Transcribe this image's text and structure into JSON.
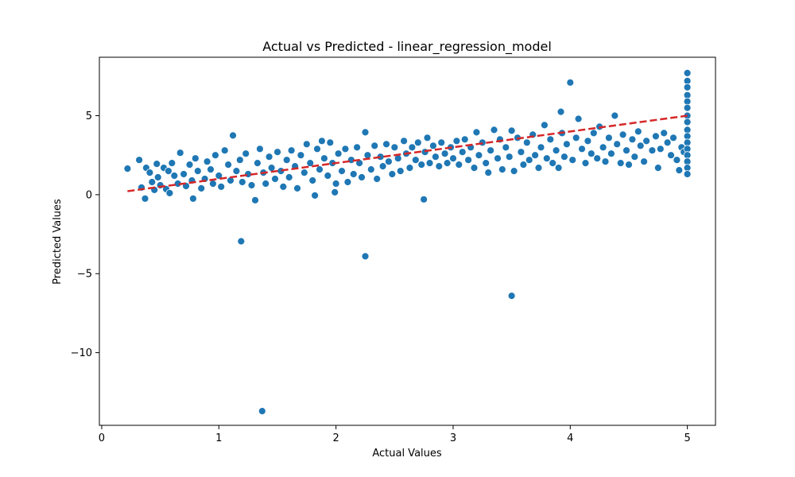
{
  "chart_data": {
    "type": "scatter",
    "title": "Actual vs Predicted - linear_regression_model",
    "xlabel": "Actual Values",
    "ylabel": "Predicted Values",
    "xlim": [
      -0.02,
      5.24
    ],
    "ylim": [
      -14.6,
      8.7
    ],
    "xticks": [
      0,
      1,
      2,
      3,
      4,
      5
    ],
    "yticks": [
      -10,
      -5,
      0,
      5
    ],
    "ytick_labels": [
      "−10",
      "−5",
      "0",
      "5"
    ],
    "grid": false,
    "legend": "none",
    "colors": {
      "points": "#1f77b4",
      "point_edge": "#ffffff",
      "reference_line": "#d62728"
    },
    "reference_line": {
      "style": "dashed",
      "x": [
        0.22,
        5.0
      ],
      "y": [
        0.22,
        5.0
      ]
    },
    "series": [
      {
        "points": [
          [
            0.22,
            1.65
          ],
          [
            0.32,
            2.2
          ],
          [
            0.34,
            0.45
          ],
          [
            0.37,
            -0.25
          ],
          [
            0.38,
            1.7
          ],
          [
            0.41,
            1.4
          ],
          [
            0.43,
            0.8
          ],
          [
            0.45,
            0.3
          ],
          [
            0.47,
            1.95
          ],
          [
            0.48,
            1.1
          ],
          [
            0.5,
            0.6
          ],
          [
            0.53,
            1.7
          ],
          [
            0.55,
            0.35
          ],
          [
            0.57,
            1.5
          ],
          [
            0.58,
            0.1
          ],
          [
            0.6,
            2.0
          ],
          [
            0.62,
            1.2
          ],
          [
            0.65,
            0.7
          ],
          [
            0.67,
            2.65
          ],
          [
            0.7,
            1.3
          ],
          [
            0.72,
            0.55
          ],
          [
            0.75,
            1.9
          ],
          [
            0.77,
            0.9
          ],
          [
            0.78,
            -0.25
          ],
          [
            0.8,
            2.3
          ],
          [
            0.82,
            1.5
          ],
          [
            0.85,
            0.4
          ],
          [
            0.88,
            1.0
          ],
          [
            0.9,
            2.1
          ],
          [
            0.93,
            1.6
          ],
          [
            0.95,
            0.7
          ],
          [
            0.97,
            2.5
          ],
          [
            1.0,
            1.2
          ],
          [
            1.02,
            0.5
          ],
          [
            1.05,
            2.8
          ],
          [
            1.08,
            1.9
          ],
          [
            1.1,
            0.9
          ],
          [
            1.12,
            3.75
          ],
          [
            1.15,
            1.5
          ],
          [
            1.18,
            2.2
          ],
          [
            1.19,
            -2.95
          ],
          [
            1.2,
            0.8
          ],
          [
            1.23,
            2.6
          ],
          [
            1.25,
            1.3
          ],
          [
            1.28,
            0.6
          ],
          [
            1.31,
            -0.35
          ],
          [
            1.33,
            2.0
          ],
          [
            1.35,
            2.9
          ],
          [
            1.37,
            -13.7
          ],
          [
            1.38,
            1.4
          ],
          [
            1.4,
            0.7
          ],
          [
            1.43,
            2.4
          ],
          [
            1.45,
            1.7
          ],
          [
            1.48,
            1.0
          ],
          [
            1.5,
            2.7
          ],
          [
            1.53,
            1.5
          ],
          [
            1.55,
            0.5
          ],
          [
            1.58,
            2.2
          ],
          [
            1.6,
            1.1
          ],
          [
            1.62,
            2.8
          ],
          [
            1.65,
            1.8
          ],
          [
            1.67,
            0.4
          ],
          [
            1.7,
            2.5
          ],
          [
            1.73,
            1.4
          ],
          [
            1.75,
            3.2
          ],
          [
            1.78,
            2.0
          ],
          [
            1.8,
            0.9
          ],
          [
            1.82,
            -0.05
          ],
          [
            1.84,
            2.9
          ],
          [
            1.86,
            1.6
          ],
          [
            1.88,
            3.4
          ],
          [
            1.9,
            2.3
          ],
          [
            1.93,
            1.2
          ],
          [
            1.95,
            3.3
          ],
          [
            1.97,
            2.0
          ],
          [
            1.99,
            0.15
          ],
          [
            2.0,
            0.7
          ],
          [
            2.02,
            2.6
          ],
          [
            2.05,
            1.5
          ],
          [
            2.08,
            2.9
          ],
          [
            2.1,
            0.8
          ],
          [
            2.13,
            2.2
          ],
          [
            2.15,
            1.3
          ],
          [
            2.18,
            3.0
          ],
          [
            2.2,
            2.0
          ],
          [
            2.22,
            1.1
          ],
          [
            2.25,
            3.95
          ],
          [
            2.25,
            -3.9
          ],
          [
            2.27,
            2.5
          ],
          [
            2.3,
            1.6
          ],
          [
            2.33,
            3.1
          ],
          [
            2.35,
            1.0
          ],
          [
            2.38,
            2.4
          ],
          [
            2.4,
            1.8
          ],
          [
            2.43,
            3.2
          ],
          [
            2.45,
            2.1
          ],
          [
            2.48,
            1.3
          ],
          [
            2.5,
            3.0
          ],
          [
            2.53,
            2.3
          ],
          [
            2.55,
            1.5
          ],
          [
            2.58,
            3.4
          ],
          [
            2.6,
            2.6
          ],
          [
            2.63,
            1.7
          ],
          [
            2.65,
            3.0
          ],
          [
            2.68,
            2.2
          ],
          [
            2.7,
            3.3
          ],
          [
            2.73,
            1.9
          ],
          [
            2.75,
            -0.3
          ],
          [
            2.76,
            2.7
          ],
          [
            2.78,
            3.6
          ],
          [
            2.8,
            2.0
          ],
          [
            2.83,
            3.1
          ],
          [
            2.85,
            2.4
          ],
          [
            2.88,
            1.8
          ],
          [
            2.9,
            3.3
          ],
          [
            2.93,
            2.6
          ],
          [
            2.95,
            2.0
          ],
          [
            2.98,
            3.0
          ],
          [
            3.0,
            2.3
          ],
          [
            3.03,
            3.4
          ],
          [
            3.05,
            1.9
          ],
          [
            3.08,
            2.7
          ],
          [
            3.1,
            3.5
          ],
          [
            3.13,
            2.2
          ],
          [
            3.15,
            3.0
          ],
          [
            3.18,
            1.7
          ],
          [
            3.2,
            3.95
          ],
          [
            3.22,
            2.5
          ],
          [
            3.25,
            3.3
          ],
          [
            3.28,
            2.0
          ],
          [
            3.3,
            1.4
          ],
          [
            3.32,
            2.8
          ],
          [
            3.35,
            4.1
          ],
          [
            3.38,
            2.3
          ],
          [
            3.4,
            3.5
          ],
          [
            3.42,
            1.6
          ],
          [
            3.45,
            3.0
          ],
          [
            3.48,
            2.4
          ],
          [
            3.5,
            4.05
          ],
          [
            3.5,
            -6.4
          ],
          [
            3.52,
            1.5
          ],
          [
            3.55,
            3.6
          ],
          [
            3.58,
            2.7
          ],
          [
            3.6,
            1.9
          ],
          [
            3.63,
            3.3
          ],
          [
            3.65,
            2.2
          ],
          [
            3.68,
            3.8
          ],
          [
            3.7,
            2.5
          ],
          [
            3.73,
            1.7
          ],
          [
            3.75,
            3.0
          ],
          [
            3.78,
            4.4
          ],
          [
            3.8,
            2.3
          ],
          [
            3.83,
            3.5
          ],
          [
            3.85,
            2.0
          ],
          [
            3.88,
            2.8
          ],
          [
            3.9,
            1.7
          ],
          [
            3.92,
            5.25
          ],
          [
            3.93,
            3.9
          ],
          [
            3.95,
            2.4
          ],
          [
            3.97,
            3.2
          ],
          [
            4.0,
            7.1
          ],
          [
            4.02,
            2.2
          ],
          [
            4.05,
            3.6
          ],
          [
            4.07,
            4.8
          ],
          [
            4.1,
            2.9
          ],
          [
            4.13,
            2.0
          ],
          [
            4.15,
            3.4
          ],
          [
            4.18,
            2.6
          ],
          [
            4.2,
            3.9
          ],
          [
            4.23,
            2.3
          ],
          [
            4.25,
            4.3
          ],
          [
            4.28,
            3.0
          ],
          [
            4.3,
            2.1
          ],
          [
            4.33,
            3.6
          ],
          [
            4.35,
            2.6
          ],
          [
            4.38,
            5.0
          ],
          [
            4.4,
            3.2
          ],
          [
            4.43,
            2.0
          ],
          [
            4.45,
            3.8
          ],
          [
            4.48,
            2.8
          ],
          [
            4.5,
            1.9
          ],
          [
            4.53,
            3.5
          ],
          [
            4.55,
            2.4
          ],
          [
            4.58,
            4.0
          ],
          [
            4.6,
            3.1
          ],
          [
            4.63,
            2.1
          ],
          [
            4.65,
            3.4
          ],
          [
            4.7,
            2.8
          ],
          [
            4.73,
            3.7
          ],
          [
            4.75,
            1.7
          ],
          [
            4.77,
            2.9
          ],
          [
            4.8,
            3.9
          ],
          [
            4.83,
            3.3
          ],
          [
            4.86,
            2.5
          ],
          [
            4.88,
            3.6
          ],
          [
            4.91,
            2.2
          ],
          [
            4.93,
            1.55
          ],
          [
            4.95,
            3.0
          ],
          [
            4.97,
            2.7
          ],
          [
            5.0,
            7.7
          ],
          [
            5.0,
            7.2
          ],
          [
            5.0,
            6.8
          ],
          [
            5.0,
            6.3
          ],
          [
            5.0,
            5.9
          ],
          [
            5.0,
            5.5
          ],
          [
            5.0,
            5.0
          ],
          [
            5.0,
            4.6
          ],
          [
            5.0,
            4.1
          ],
          [
            5.0,
            3.7
          ],
          [
            5.0,
            3.3
          ],
          [
            5.0,
            2.9
          ],
          [
            5.0,
            2.5
          ],
          [
            5.0,
            2.1
          ],
          [
            5.0,
            1.7
          ],
          [
            5.0,
            1.3
          ]
        ]
      }
    ]
  }
}
